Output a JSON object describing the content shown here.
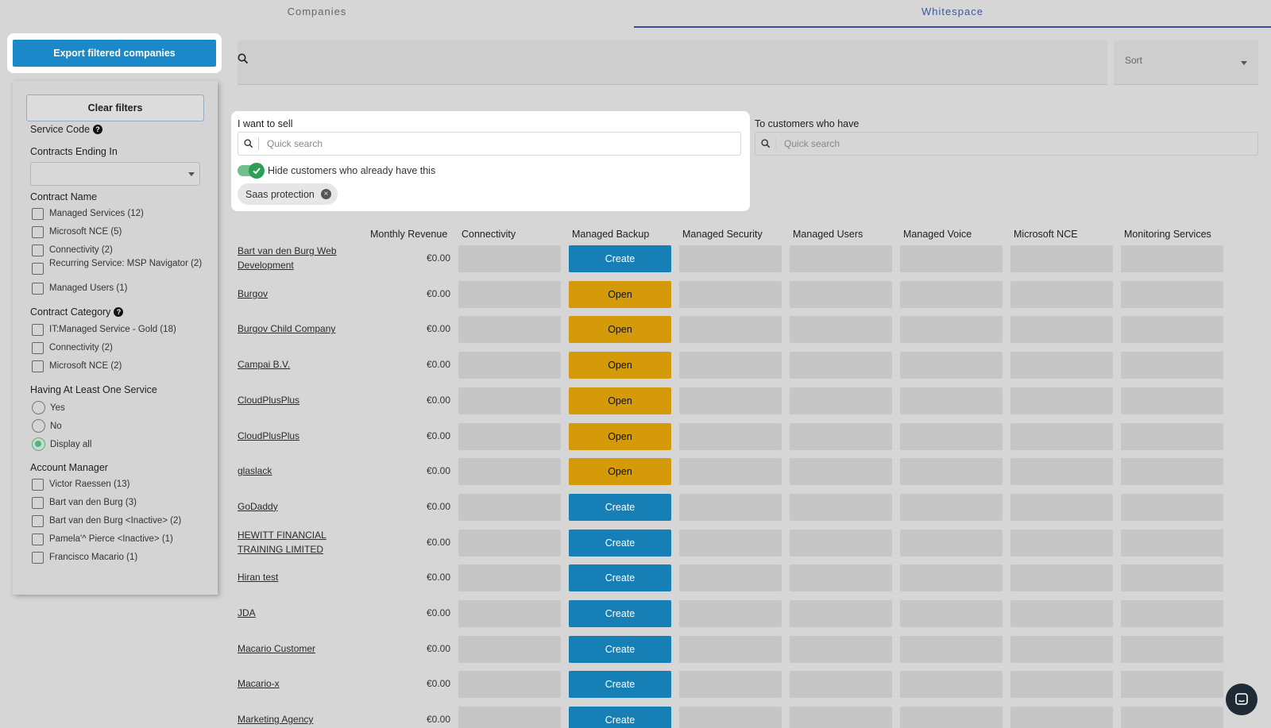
{
  "tabs": [
    {
      "label": "Companies"
    },
    {
      "label": "Whitespace"
    }
  ],
  "export_label": "Export filtered companies",
  "sidebar": {
    "clear_label": "Clear filters",
    "service_code": "Service Code",
    "contracts_ending": "Contracts Ending In",
    "contract_name": {
      "title": "Contract Name",
      "items": [
        "Managed Services (12)",
        "Microsoft NCE (5)",
        "Connectivity (2)",
        "Recurring Service: MSP Navigator (2)",
        "Managed Users (1)"
      ]
    },
    "contract_category": {
      "title": "Contract Category",
      "items": [
        "IT:Managed Service - Gold (18)",
        "Connectivity (2)",
        "Microsoft NCE (2)"
      ]
    },
    "having_service": {
      "title": "Having At Least One Service",
      "options": [
        "Yes",
        "No",
        "Display all"
      ],
      "selected": "Display all"
    },
    "account_manager": {
      "title": "Account Manager",
      "items": [
        "Victor Raessen (13)",
        "Bart van den Burg (3)",
        "Bart van den Burg <Inactive> (2)",
        "Pamela'^ Pierce <Inactive> (1)",
        "Francisco Macario (1)"
      ]
    }
  },
  "sort_label": "Sort",
  "sell_panel": {
    "label": "I want to sell",
    "search_placeholder": "Quick search",
    "toggle_label": "Hide customers who already have this",
    "chip": "Saas protection"
  },
  "customers_panel": {
    "label": "To customers who have",
    "search_placeholder": "Quick search"
  },
  "table": {
    "headers": [
      "Monthly Revenue",
      "Connectivity",
      "Managed Backup",
      "Managed Security",
      "Managed Users",
      "Managed Voice",
      "Microsoft NCE",
      "Monitoring Services"
    ],
    "rows": [
      {
        "company": "Bart van den Burg Web Development",
        "revenue": "€0.00",
        "backup": "Create"
      },
      {
        "company": "Burgov",
        "revenue": "€0.00",
        "backup": "Open"
      },
      {
        "company": "Burgov Child Company",
        "revenue": "€0.00",
        "backup": "Open"
      },
      {
        "company": "Campai B.V.",
        "revenue": "€0.00",
        "backup": "Open"
      },
      {
        "company": "CloudPlusPlus",
        "revenue": "€0.00",
        "backup": "Open"
      },
      {
        "company": "CloudPlusPlus",
        "revenue": "€0.00",
        "backup": "Open"
      },
      {
        "company": "glaslack",
        "revenue": "€0.00",
        "backup": "Open"
      },
      {
        "company": "GoDaddy",
        "revenue": "€0.00",
        "backup": "Create"
      },
      {
        "company": "HEWITT FINANCIAL TRAINING LIMITED",
        "revenue": "€0.00",
        "backup": "Create"
      },
      {
        "company": "Hiran test",
        "revenue": "€0.00",
        "backup": "Create"
      },
      {
        "company": "JDA",
        "revenue": "€0.00",
        "backup": "Create"
      },
      {
        "company": "Macario Customer",
        "revenue": "€0.00",
        "backup": "Create"
      },
      {
        "company": "Macario-x",
        "revenue": "€0.00",
        "backup": "Create"
      },
      {
        "company": "Marketing Agency",
        "revenue": "€0.00",
        "backup": "Create"
      }
    ]
  },
  "colors": {
    "create": "#1680b6",
    "open": "#d49a0a",
    "accent": "#1a88c9",
    "toggle_on": "#2e9e55"
  }
}
